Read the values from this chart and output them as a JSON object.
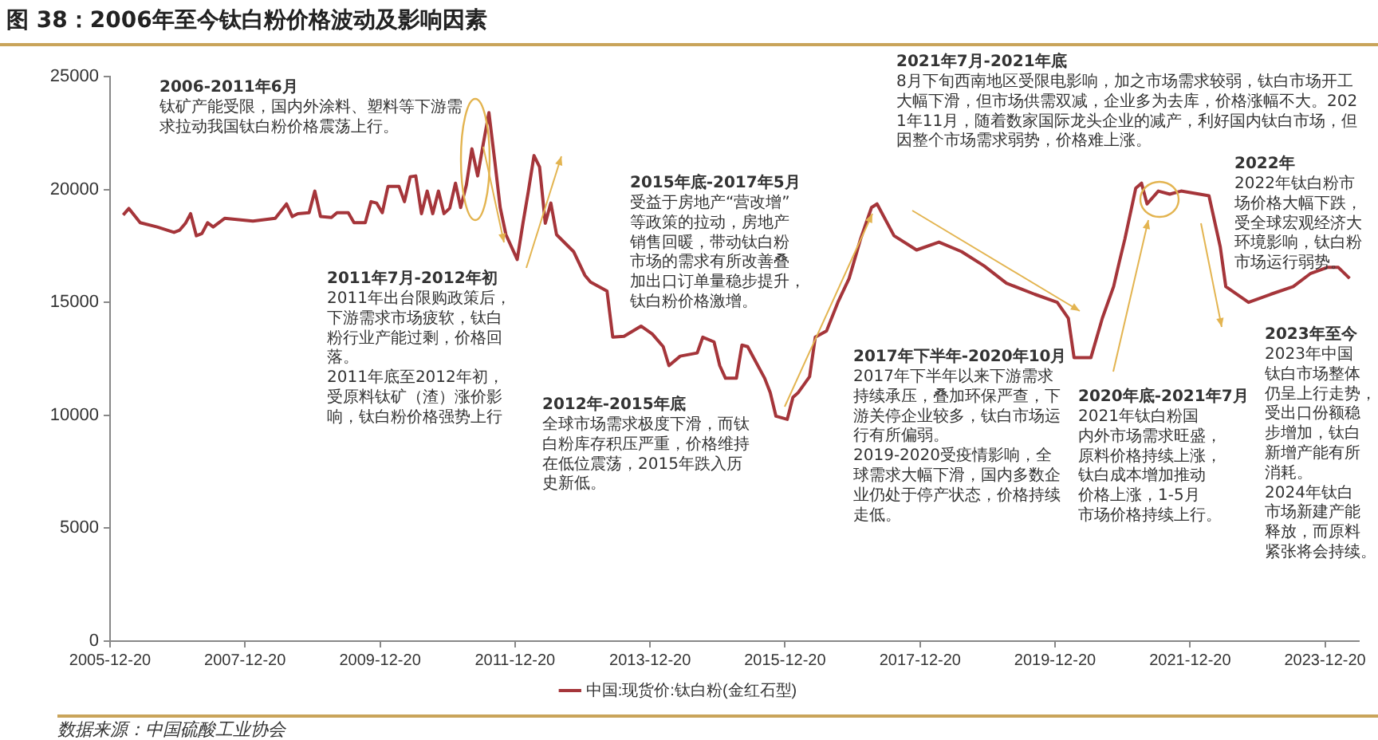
{
  "chart_data": {
    "type": "line",
    "title": "图 38：2006年至今钛白粉价格波动及影响因素",
    "x": [
      "2006-03",
      "2006-04",
      "2006-06",
      "2006-09",
      "2006-12",
      "2007-01",
      "2007-02",
      "2007-03",
      "2007-04",
      "2007-05",
      "2007-06",
      "2007-07",
      "2007-09",
      "2008-02",
      "2008-06",
      "2008-08",
      "2008-09",
      "2008-10",
      "2008-12",
      "2009-01",
      "2009-02",
      "2009-04",
      "2009-05",
      "2009-07",
      "2009-08",
      "2009-10",
      "2009-11",
      "2009-12",
      "2010-01",
      "2010-02",
      "2010-04",
      "2010-05",
      "2010-06",
      "2010-07",
      "2010-08",
      "2010-09",
      "2010-10",
      "2010-11",
      "2010-12",
      "2011-01",
      "2011-02",
      "2011-03",
      "2011-04",
      "2011-05",
      "2011-06",
      "2011-07",
      "2011-08",
      "2011-09",
      "2011-10",
      "2011-11",
      "2012-01",
      "2012-02",
      "2012-03",
      "2012-04",
      "2012-05",
      "2012-06",
      "2012-07",
      "2012-08",
      "2012-11",
      "2013-01",
      "2013-02",
      "2013-05",
      "2013-06",
      "2013-08",
      "2013-11",
      "2014-01",
      "2014-03",
      "2014-04",
      "2014-06",
      "2014-09",
      "2014-10",
      "2014-12",
      "2015-01",
      "2015-02",
      "2015-04",
      "2015-05",
      "2015-06",
      "2015-09",
      "2015-10",
      "2015-11",
      "2016-01",
      "2016-02",
      "2016-03",
      "2016-05",
      "2016-06",
      "2016-08",
      "2016-10",
      "2016-12",
      "2017-02",
      "2017-04",
      "2017-05",
      "2017-08",
      "2017-12",
      "2018-04",
      "2018-08",
      "2018-12",
      "2019-04",
      "2019-09",
      "2020-01",
      "2020-03",
      "2020-04",
      "2020-07",
      "2020-09",
      "2020-11",
      "2020-12",
      "2021-01",
      "2021-03",
      "2021-04",
      "2021-05",
      "2021-07",
      "2021-09",
      "2021-11",
      "2022-04",
      "2022-06",
      "2022-07",
      "2022-11",
      "2023-03",
      "2023-07",
      "2023-10",
      "2024-01",
      "2024-03",
      "2024-05"
    ],
    "series": [
      {
        "name": "中国:现货价:钛白粉(金红石型)",
        "color": "#a5353a",
        "values": [
          18870,
          19160,
          18530,
          18340,
          18100,
          18200,
          18500,
          18930,
          17950,
          18050,
          18530,
          18340,
          18720,
          18600,
          18720,
          19360,
          18800,
          18930,
          18970,
          19930,
          18800,
          18760,
          18970,
          18970,
          18530,
          18530,
          19460,
          19400,
          18970,
          20140,
          20140,
          19460,
          20560,
          20600,
          18930,
          19930,
          18930,
          19930,
          18930,
          19170,
          20280,
          19200,
          20200,
          21800,
          20600,
          22000,
          23400,
          21300,
          19200,
          18000,
          16900,
          18500,
          19900,
          21500,
          21000,
          18500,
          19400,
          18000,
          17250,
          16200,
          15900,
          15500,
          13460,
          13500,
          13950,
          13600,
          13040,
          12200,
          12620,
          12760,
          13460,
          13250,
          12200,
          11640,
          11640,
          13110,
          13040,
          11640,
          11010,
          9960,
          9820,
          10800,
          11010,
          11710,
          13460,
          13740,
          15000,
          16060,
          17810,
          19200,
          19360,
          17950,
          17320,
          17670,
          17250,
          16620,
          15850,
          15360,
          15000,
          14300,
          12550,
          12550,
          14300,
          15700,
          16760,
          17810,
          20060,
          20280,
          19360,
          19930,
          19790,
          19930,
          19720,
          17460,
          15700,
          15000,
          15360,
          15700,
          16270,
          16550,
          16550,
          16060
        ]
      }
    ],
    "xlim": [
      "2005-12-20",
      "2024-06-20"
    ],
    "xticks": [
      "2005-12-20",
      "2007-12-20",
      "2009-12-20",
      "2011-12-20",
      "2013-12-20",
      "2015-12-20",
      "2017-12-20",
      "2019-12-20",
      "2021-12-20",
      "2023-12-20"
    ],
    "ylim": [
      0,
      25000
    ],
    "yticks": [
      0,
      5000,
      10000,
      15000,
      20000,
      25000
    ],
    "legend": "bottom",
    "line_style": "solid",
    "annotations": [
      "2006-2011年6月",
      "钛矿产能受限，国内外涂料、塑料等下游需求拉动我国钛白粉价格震荡上行。",
      "2011年7月-2012年初",
      "2011年出台限购政策后，下游需求市场疲软，钛白粉行业产能过剩，价格回落。",
      "2011年底至2012年初，受原料钛矿（渣）涨价影响，钛白粉价格强势上行",
      "2015年底-2017年5月",
      "受益于房地产“营改增”等政策的拉动，房地产销售回暖，带动钛白粉市场的需求有所改善叠加出口订单量稳步提升，钛白粉价格激增。",
      "2012年-2015年底",
      "全球市场需求极度下滑，而钛白粉库存积压严重，价格维持在低位震荡，2015年跌入历史新低。",
      "2017年下半年-2020年10月",
      "2017年下半年以来下游需求持续承压，叠加环保严查，下游关停企业较多，钛白市场运行有所偏弱。",
      "2019-2020受疫情影响，全球需求大幅下滑，国内多数企业仍处于停产状态，价格持续走低。",
      "2021年7月-2021年底",
      "8月下旬西南地区受限电影响，加之市场需求较弱，钛白市场开工大幅下滑，但市场供需双减，企业多为去库，价格涨幅不大。2021年11月，随着数家国际龙头企业的减产，利好国内钛白市场，但因整个市场需求弱势，价格难上涨。",
      "2022年",
      "2022年钛白粉市场价格大幅下跌，受全球宏观经济大环境影响，钛白粉市场运行弱势。",
      "2020年底-2021年7月",
      "2021年钛白粉国内外市场需求旺盛，原料价格持续上涨，钛白成本增加推动价格上涨，1-5月市场价格持续上行。",
      "2023年至今",
      "2023年中国钛白市场整体仍呈上行走势，受出口份额稳步增加，钛白新增产能有所消耗。",
      "2024年钛白市场新建产能释放，而原料紧张将会持续。",
      "数据来源：中国硫酸工业协会"
    ]
  }
}
